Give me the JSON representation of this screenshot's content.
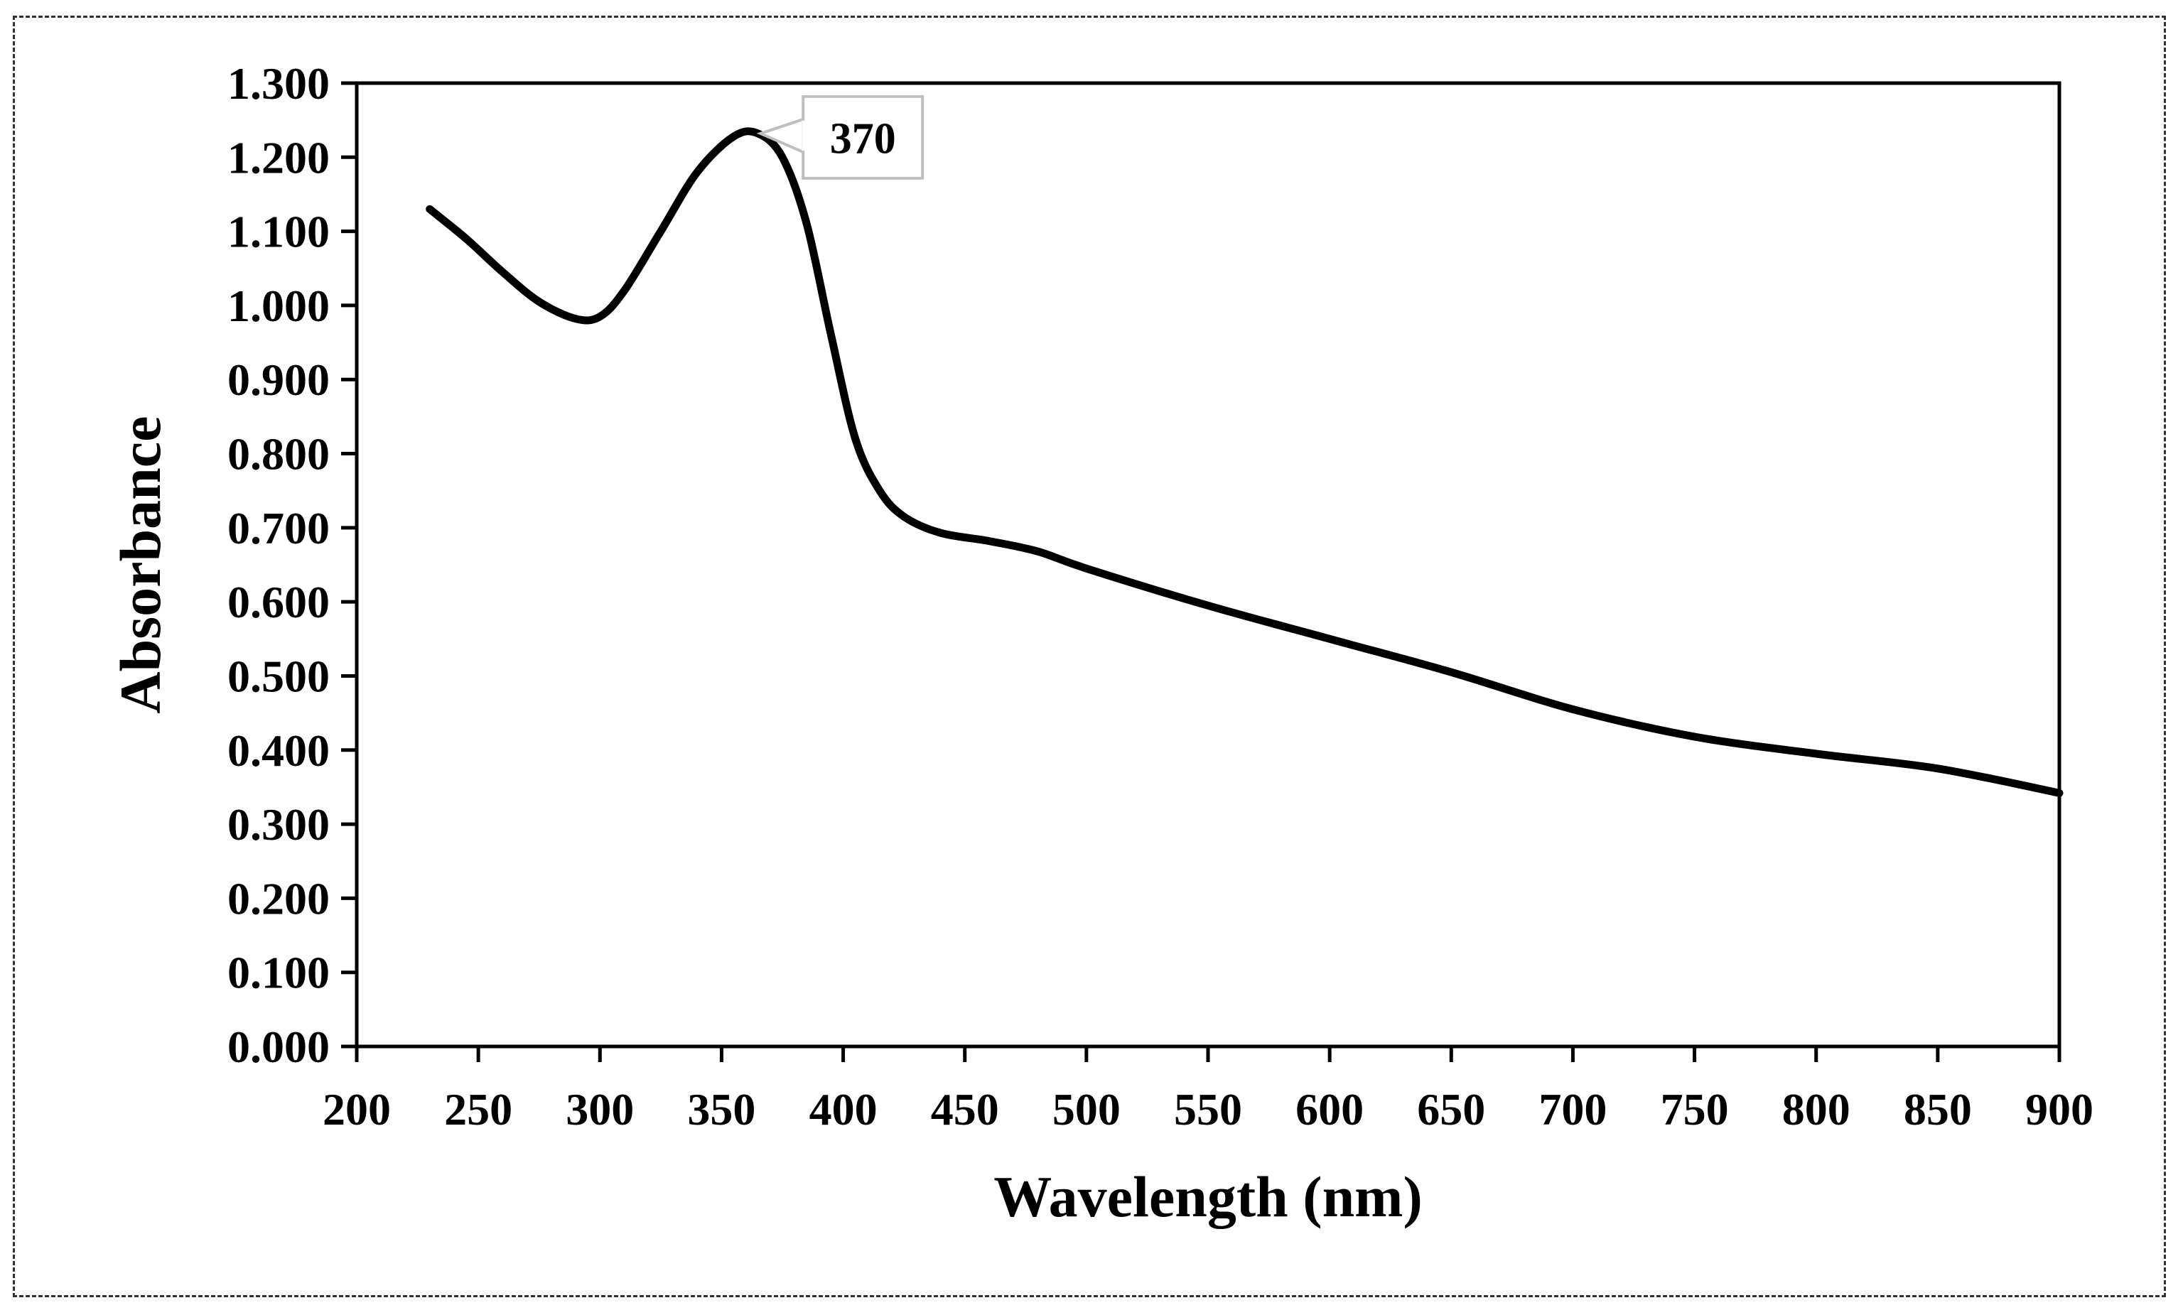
{
  "chart_data": {
    "type": "line",
    "title": "",
    "xlabel": "Wavelength (nm)",
    "ylabel": "Absorbance",
    "xlim": [
      200,
      900
    ],
    "ylim": [
      0,
      1.3
    ],
    "x_ticks": [
      "200",
      "250",
      "300",
      "350",
      "400",
      "450",
      "500",
      "550",
      "600",
      "650",
      "700",
      "750",
      "800",
      "850",
      "900"
    ],
    "y_ticks": [
      "0.000",
      "0.100",
      "0.200",
      "0.300",
      "0.400",
      "0.500",
      "0.600",
      "0.700",
      "0.800",
      "0.900",
      "1.000",
      "1.100",
      "1.200",
      "1.300"
    ],
    "grid": false,
    "legend": "none",
    "series": [
      {
        "name": "Absorbance",
        "color": "#000000",
        "x": [
          230,
          245,
          260,
          275,
          290,
          300,
          310,
          325,
          340,
          355,
          365,
          375,
          385,
          395,
          405,
          415,
          425,
          440,
          460,
          480,
          500,
          550,
          600,
          650,
          700,
          750,
          800,
          850,
          900
        ],
        "y": [
          1.13,
          1.09,
          1.045,
          1.005,
          0.982,
          0.985,
          1.02,
          1.1,
          1.18,
          1.228,
          1.232,
          1.2,
          1.11,
          0.96,
          0.82,
          0.75,
          0.715,
          0.693,
          0.682,
          0.668,
          0.645,
          0.595,
          0.55,
          0.505,
          0.455,
          0.418,
          0.395,
          0.375,
          0.342
        ]
      }
    ],
    "annotations": [
      {
        "text": "370",
        "x": 366,
        "y": 1.232
      }
    ]
  }
}
